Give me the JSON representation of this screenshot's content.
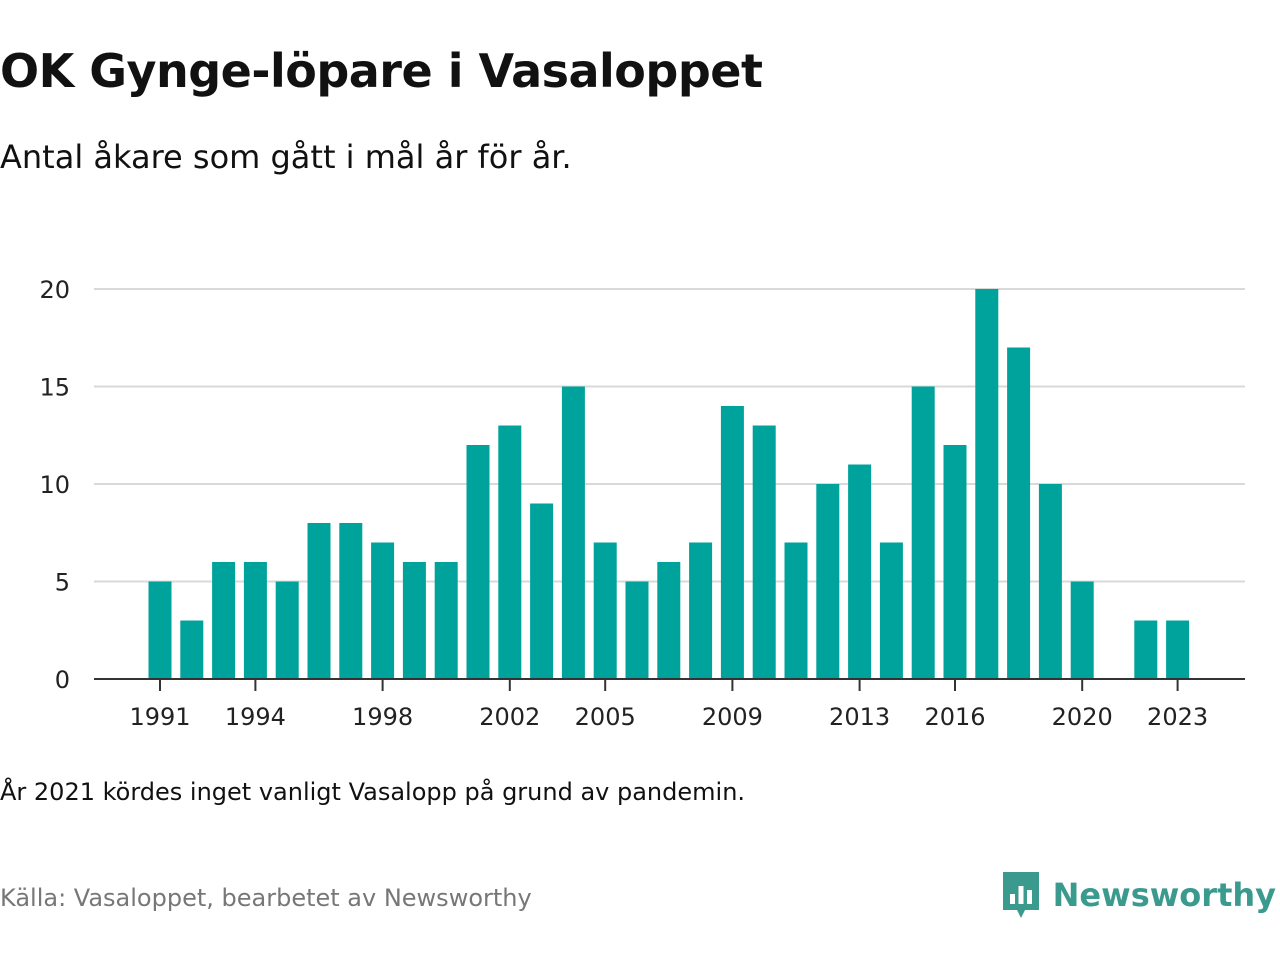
{
  "header": {
    "title": "OK Gynge-löpare i Vasaloppet",
    "subtitle": "Antal åkare som gått i mål år för år."
  },
  "footer": {
    "note": "År 2021 kördes inget vanligt Vasalopp på grund av pandemin.",
    "source": "Källa: Vasaloppet, bearbetet av Newsworthy",
    "brand": "Newsworthy",
    "brand_icon": "newsworthy-logo-icon"
  },
  "colors": {
    "bar": "#00a39b",
    "grid": "#d9d9d9",
    "axis": "#333333",
    "brand": "#3b9a8e"
  },
  "chart_data": {
    "type": "bar",
    "title": "OK Gynge-löpare i Vasaloppet",
    "subtitle": "Antal åkare som gått i mål år för år.",
    "xlabel": "",
    "ylabel": "",
    "ylim": [
      0,
      20
    ],
    "yticks": [
      0,
      5,
      10,
      15,
      20
    ],
    "xticks": [
      "1991",
      "1994",
      "1998",
      "2002",
      "2005",
      "2009",
      "2013",
      "2016",
      "2020",
      "2023"
    ],
    "grid": true,
    "categories": [
      "1991",
      "1992",
      "1993",
      "1994",
      "1995",
      "1996",
      "1997",
      "1998",
      "1999",
      "2000",
      "2001",
      "2002",
      "2003",
      "2004",
      "2005",
      "2006",
      "2007",
      "2008",
      "2009",
      "2010",
      "2011",
      "2012",
      "2013",
      "2014",
      "2015",
      "2016",
      "2017",
      "2018",
      "2019",
      "2020",
      "2021",
      "2022",
      "2023"
    ],
    "values": [
      5,
      3,
      6,
      6,
      5,
      8,
      8,
      7,
      6,
      6,
      12,
      13,
      9,
      15,
      7,
      5,
      6,
      7,
      14,
      13,
      7,
      10,
      11,
      7,
      15,
      12,
      20,
      17,
      10,
      5,
      0,
      3,
      3
    ]
  }
}
